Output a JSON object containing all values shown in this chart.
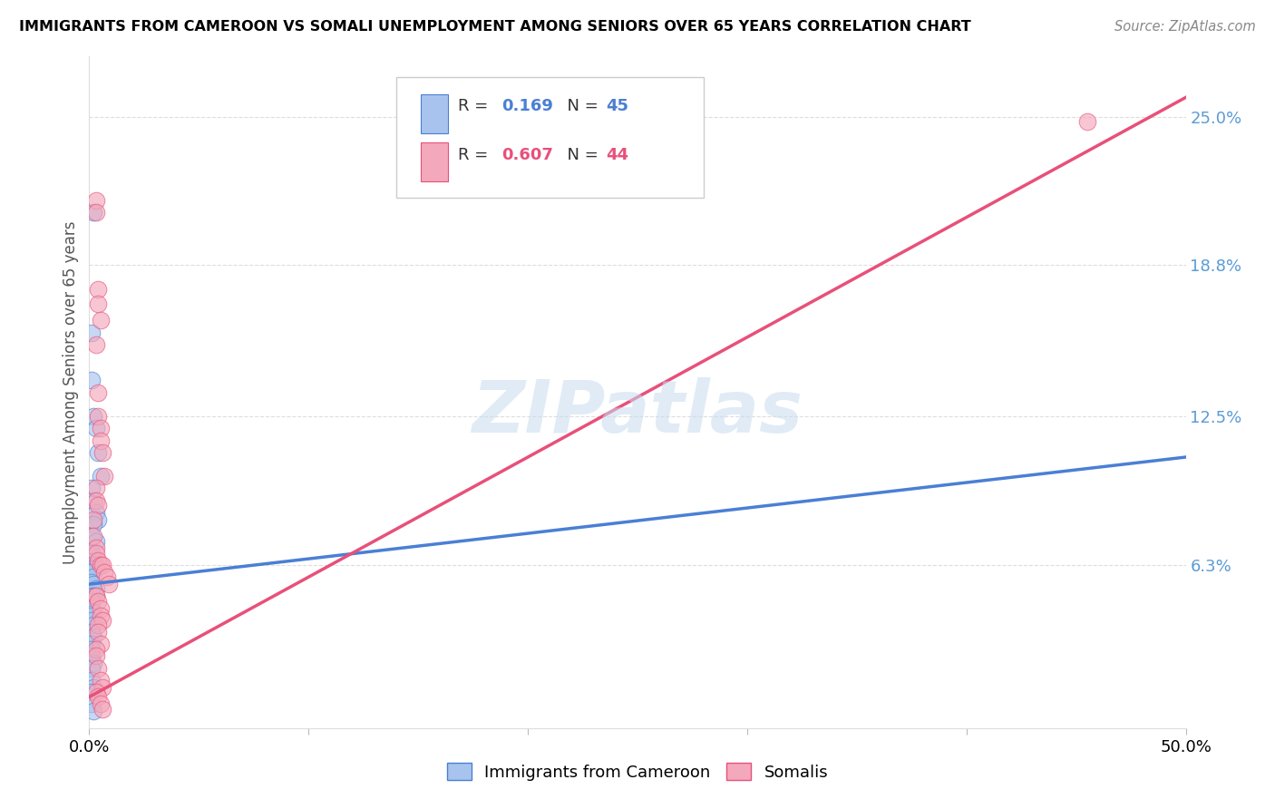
{
  "title": "IMMIGRANTS FROM CAMEROON VS SOMALI UNEMPLOYMENT AMONG SENIORS OVER 65 YEARS CORRELATION CHART",
  "source": "Source: ZipAtlas.com",
  "ylabel": "Unemployment Among Seniors over 65 years",
  "xlim": [
    0.0,
    0.5
  ],
  "ylim": [
    -0.005,
    0.275
  ],
  "xticks": [
    0.0,
    0.1,
    0.2,
    0.3,
    0.4,
    0.5
  ],
  "xticklabels": [
    "0.0%",
    "",
    "",
    "",
    "",
    "50.0%"
  ],
  "yticks_right": [
    0.063,
    0.125,
    0.188,
    0.25
  ],
  "ytick_labels_right": [
    "6.3%",
    "12.5%",
    "18.8%",
    "25.0%"
  ],
  "legend_R1": "0.169",
  "legend_N1": "45",
  "legend_R2": "0.607",
  "legend_N2": "44",
  "color_blue": "#a8c4ee",
  "color_pink": "#f4a8bb",
  "color_line_blue": "#4a7fd4",
  "color_line_pink": "#e8507a",
  "color_axis_right": "#5b9bd5",
  "watermark": "ZIPatlas",
  "cameroon_x": [
    0.002,
    0.001,
    0.001,
    0.002,
    0.003,
    0.004,
    0.005,
    0.001,
    0.002,
    0.003,
    0.004,
    0.002,
    0.001,
    0.003,
    0.001,
    0.002,
    0.003,
    0.001,
    0.002,
    0.003,
    0.001,
    0.002,
    0.001,
    0.002,
    0.003,
    0.001,
    0.002,
    0.001,
    0.001,
    0.002,
    0.001,
    0.001,
    0.002,
    0.001,
    0.002,
    0.001,
    0.001,
    0.001,
    0.002,
    0.001,
    0.001,
    0.002,
    0.001,
    0.001,
    0.002
  ],
  "cameroon_y": [
    0.21,
    0.16,
    0.14,
    0.125,
    0.12,
    0.11,
    0.1,
    0.095,
    0.09,
    0.085,
    0.082,
    0.08,
    0.075,
    0.073,
    0.068,
    0.065,
    0.063,
    0.063,
    0.062,
    0.062,
    0.06,
    0.058,
    0.056,
    0.055,
    0.053,
    0.05,
    0.05,
    0.048,
    0.045,
    0.043,
    0.042,
    0.04,
    0.038,
    0.035,
    0.033,
    0.03,
    0.028,
    0.025,
    0.022,
    0.02,
    0.015,
    0.012,
    0.01,
    0.005,
    0.002
  ],
  "somali_x": [
    0.003,
    0.003,
    0.004,
    0.004,
    0.005,
    0.003,
    0.004,
    0.004,
    0.005,
    0.005,
    0.006,
    0.007,
    0.003,
    0.003,
    0.004,
    0.002,
    0.002,
    0.003,
    0.003,
    0.004,
    0.005,
    0.006,
    0.007,
    0.008,
    0.009,
    0.003,
    0.003,
    0.004,
    0.005,
    0.005,
    0.006,
    0.004,
    0.004,
    0.005,
    0.003,
    0.003,
    0.004,
    0.005,
    0.006,
    0.003,
    0.004,
    0.005,
    0.006,
    0.455
  ],
  "somali_y": [
    0.215,
    0.21,
    0.178,
    0.172,
    0.165,
    0.155,
    0.135,
    0.125,
    0.12,
    0.115,
    0.11,
    0.1,
    0.095,
    0.09,
    0.088,
    0.082,
    0.075,
    0.07,
    0.068,
    0.065,
    0.063,
    0.063,
    0.06,
    0.058,
    0.055,
    0.05,
    0.05,
    0.048,
    0.045,
    0.042,
    0.04,
    0.038,
    0.035,
    0.03,
    0.028,
    0.025,
    0.02,
    0.015,
    0.012,
    0.01,
    0.008,
    0.005,
    0.003,
    0.248
  ],
  "blue_line_x": [
    0.0,
    0.5
  ],
  "blue_line_y": [
    0.055,
    0.108
  ],
  "pink_line_x": [
    0.0,
    0.5
  ],
  "pink_line_y": [
    0.008,
    0.258
  ],
  "gray_line_x": [
    0.0,
    0.5
  ],
  "gray_line_y": [
    0.008,
    0.258
  ]
}
